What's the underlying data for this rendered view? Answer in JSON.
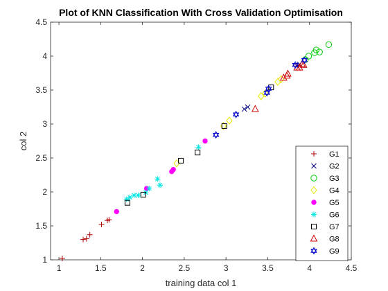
{
  "chart_data": {
    "type": "scatter",
    "title": "Plot of KNN Classification With Cross Validation Optimisation",
    "xlabel": "training data col 1",
    "ylabel": "col 2",
    "xlim": [
      0.9,
      4.5
    ],
    "ylim": [
      1,
      4.5
    ],
    "xticks": [
      "1",
      "1.5",
      "2",
      "2.5",
      "3",
      "3.5",
      "4",
      "4.5"
    ],
    "yticks": [
      "1",
      "1.5",
      "2",
      "2.5",
      "3",
      "3.5",
      "4",
      "4.5"
    ],
    "grid": false,
    "legend_position": "bottom-right",
    "series": [
      {
        "name": "G1",
        "marker": "plus",
        "color": "#b00000",
        "points": [
          [
            1.04,
            1.02
          ],
          [
            1.29,
            1.3
          ],
          [
            1.33,
            1.31
          ],
          [
            1.37,
            1.37
          ],
          [
            1.51,
            1.52
          ],
          [
            1.58,
            1.58
          ],
          [
            1.6,
            1.59
          ]
        ]
      },
      {
        "name": "G2",
        "marker": "cross",
        "color": "#000080",
        "points": [
          [
            3.22,
            3.22
          ],
          [
            3.26,
            3.25
          ],
          [
            3.85,
            3.85
          ],
          [
            3.88,
            3.88
          ]
        ]
      },
      {
        "name": "G3",
        "marker": "circle",
        "color": "#00cc00",
        "points": [
          [
            3.95,
            3.95
          ],
          [
            3.99,
            4.0
          ],
          [
            4.06,
            4.05
          ],
          [
            4.08,
            4.09
          ],
          [
            4.12,
            4.06
          ],
          [
            4.23,
            4.17
          ]
        ]
      },
      {
        "name": "G4",
        "marker": "diamond",
        "color": "#e6e600",
        "points": [
          [
            2.41,
            2.42
          ],
          [
            2.97,
            2.97
          ],
          [
            3.04,
            3.05
          ],
          [
            3.42,
            3.41
          ],
          [
            3.47,
            3.45
          ],
          [
            3.62,
            3.62
          ],
          [
            3.66,
            3.66
          ]
        ]
      },
      {
        "name": "G5",
        "marker": "dot",
        "color": "#ff00ff",
        "points": [
          [
            1.69,
            1.71
          ],
          [
            2.05,
            2.05
          ],
          [
            2.35,
            2.3
          ],
          [
            2.37,
            2.33
          ],
          [
            2.75,
            2.75
          ]
        ]
      },
      {
        "name": "G6",
        "marker": "asterisk",
        "color": "#00e6e6",
        "points": [
          [
            1.81,
            1.89
          ],
          [
            1.85,
            1.92
          ],
          [
            1.9,
            1.95
          ],
          [
            1.95,
            1.95
          ],
          [
            2.04,
            1.99
          ],
          [
            2.08,
            2.05
          ],
          [
            2.18,
            2.19
          ],
          [
            2.21,
            2.1
          ],
          [
            2.67,
            2.66
          ]
        ]
      },
      {
        "name": "G7",
        "marker": "square",
        "color": "#000000",
        "points": [
          [
            1.82,
            1.84
          ],
          [
            2.01,
            1.96
          ],
          [
            2.46,
            2.46
          ],
          [
            2.66,
            2.58
          ],
          [
            2.98,
            2.97
          ],
          [
            3.54,
            3.54
          ]
        ]
      },
      {
        "name": "G8",
        "marker": "triangle",
        "color": "#cc0000",
        "points": [
          [
            3.35,
            3.22
          ],
          [
            3.69,
            3.68
          ],
          [
            3.73,
            3.71
          ],
          [
            3.74,
            3.74
          ],
          [
            3.85,
            3.83
          ],
          [
            3.88,
            3.83
          ],
          [
            3.91,
            3.88
          ],
          [
            3.93,
            3.87
          ]
        ]
      },
      {
        "name": "G9",
        "marker": "hexagram",
        "color": "#0000cc",
        "points": [
          [
            2.88,
            2.84
          ],
          [
            3.12,
            3.14
          ],
          [
            3.49,
            3.46
          ],
          [
            3.51,
            3.52
          ],
          [
            3.83,
            3.87
          ],
          [
            3.94,
            3.94
          ]
        ]
      }
    ]
  }
}
